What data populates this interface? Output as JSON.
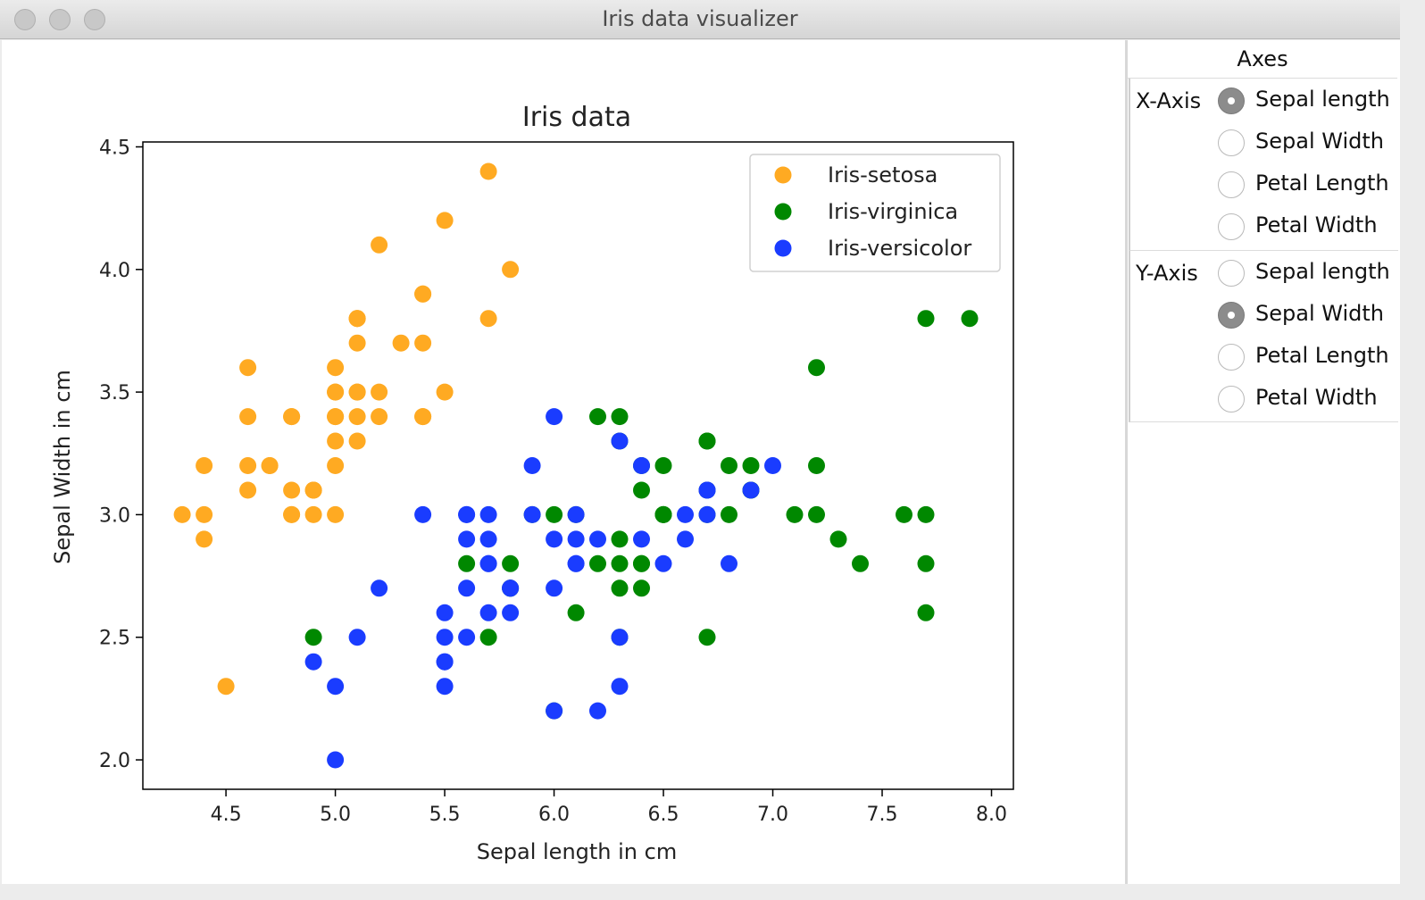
{
  "window": {
    "title": "Iris data visualizer"
  },
  "panel": {
    "title": "Axes",
    "x_axis": {
      "label": "X-Axis",
      "options": [
        "Sepal length",
        "Sepal Width",
        "Petal Length",
        "Petal Width"
      ],
      "selected": "Sepal length"
    },
    "y_axis": {
      "label": "Y-Axis",
      "options": [
        "Sepal length",
        "Sepal Width",
        "Petal Length",
        "Petal Width"
      ],
      "selected": "Sepal Width"
    }
  },
  "colors": {
    "setosa": "#ffaa22",
    "virginica": "#008800",
    "versicolor": "#1a3cff"
  },
  "chart_data": {
    "type": "scatter",
    "title": "Iris data",
    "xlabel": "Sepal length in cm",
    "ylabel": "Sepal Width in cm",
    "xlim": [
      4.12,
      8.1
    ],
    "ylim": [
      1.88,
      4.52
    ],
    "xticks": [
      "4.5",
      "5.0",
      "5.5",
      "6.0",
      "6.5",
      "7.0",
      "7.5",
      "8.0"
    ],
    "yticks": [
      "2.0",
      "2.5",
      "3.0",
      "3.5",
      "4.0",
      "4.5"
    ],
    "legend_position": "top-right",
    "series": [
      {
        "name": "Iris-setosa",
        "color": "#ffaa22",
        "points": [
          [
            5.1,
            3.5
          ],
          [
            4.9,
            3.0
          ],
          [
            4.7,
            3.2
          ],
          [
            4.6,
            3.1
          ],
          [
            5.0,
            3.6
          ],
          [
            5.4,
            3.9
          ],
          [
            4.6,
            3.4
          ],
          [
            5.0,
            3.4
          ],
          [
            4.4,
            2.9
          ],
          [
            4.9,
            3.1
          ],
          [
            5.4,
            3.7
          ],
          [
            4.8,
            3.4
          ],
          [
            4.8,
            3.0
          ],
          [
            4.3,
            3.0
          ],
          [
            5.8,
            4.0
          ],
          [
            5.7,
            4.4
          ],
          [
            5.4,
            3.9
          ],
          [
            5.1,
            3.5
          ],
          [
            5.7,
            3.8
          ],
          [
            5.1,
            3.8
          ],
          [
            5.4,
            3.4
          ],
          [
            5.1,
            3.7
          ],
          [
            4.6,
            3.6
          ],
          [
            5.1,
            3.3
          ],
          [
            4.8,
            3.4
          ],
          [
            5.0,
            3.0
          ],
          [
            5.0,
            3.4
          ],
          [
            5.2,
            3.5
          ],
          [
            5.2,
            3.4
          ],
          [
            4.7,
            3.2
          ],
          [
            4.8,
            3.1
          ],
          [
            5.4,
            3.4
          ],
          [
            5.2,
            4.1
          ],
          [
            5.5,
            4.2
          ],
          [
            4.9,
            3.1
          ],
          [
            5.0,
            3.2
          ],
          [
            5.5,
            3.5
          ],
          [
            4.9,
            3.1
          ],
          [
            4.4,
            3.0
          ],
          [
            5.1,
            3.4
          ],
          [
            5.0,
            3.5
          ],
          [
            4.5,
            2.3
          ],
          [
            4.4,
            3.2
          ],
          [
            5.0,
            3.5
          ],
          [
            5.1,
            3.8
          ],
          [
            4.8,
            3.0
          ],
          [
            5.1,
            3.8
          ],
          [
            4.6,
            3.2
          ],
          [
            5.3,
            3.7
          ],
          [
            5.0,
            3.3
          ]
        ]
      },
      {
        "name": "Iris-virginica",
        "color": "#008800",
        "points": [
          [
            6.3,
            3.3
          ],
          [
            5.8,
            2.7
          ],
          [
            7.1,
            3.0
          ],
          [
            6.3,
            2.9
          ],
          [
            6.5,
            3.0
          ],
          [
            7.6,
            3.0
          ],
          [
            4.9,
            2.5
          ],
          [
            7.3,
            2.9
          ],
          [
            6.7,
            2.5
          ],
          [
            7.2,
            3.6
          ],
          [
            6.5,
            3.2
          ],
          [
            6.4,
            2.7
          ],
          [
            6.8,
            3.0
          ],
          [
            5.7,
            2.5
          ],
          [
            5.8,
            2.8
          ],
          [
            6.4,
            3.2
          ],
          [
            6.5,
            3.0
          ],
          [
            7.7,
            3.8
          ],
          [
            7.7,
            2.6
          ],
          [
            6.0,
            2.2
          ],
          [
            6.9,
            3.2
          ],
          [
            5.6,
            2.8
          ],
          [
            7.7,
            2.8
          ],
          [
            6.3,
            2.7
          ],
          [
            6.7,
            3.3
          ],
          [
            7.2,
            3.2
          ],
          [
            6.2,
            2.8
          ],
          [
            6.1,
            3.0
          ],
          [
            6.4,
            2.8
          ],
          [
            7.2,
            3.0
          ],
          [
            7.4,
            2.8
          ],
          [
            7.9,
            3.8
          ],
          [
            6.4,
            2.8
          ],
          [
            6.3,
            2.8
          ],
          [
            6.1,
            2.6
          ],
          [
            7.7,
            3.0
          ],
          [
            6.3,
            3.4
          ],
          [
            6.4,
            3.1
          ],
          [
            6.0,
            3.0
          ],
          [
            6.9,
            3.1
          ],
          [
            6.7,
            3.1
          ],
          [
            6.9,
            3.1
          ],
          [
            5.8,
            2.7
          ],
          [
            6.8,
            3.2
          ],
          [
            6.7,
            3.3
          ],
          [
            6.7,
            3.0
          ],
          [
            6.3,
            2.5
          ],
          [
            6.5,
            3.0
          ],
          [
            6.2,
            3.4
          ],
          [
            5.9,
            3.0
          ]
        ]
      },
      {
        "name": "Iris-versicolor",
        "color": "#1a3cff",
        "points": [
          [
            7.0,
            3.2
          ],
          [
            6.4,
            3.2
          ],
          [
            6.9,
            3.1
          ],
          [
            5.5,
            2.3
          ],
          [
            6.5,
            2.8
          ],
          [
            5.7,
            2.8
          ],
          [
            6.3,
            3.3
          ],
          [
            4.9,
            2.4
          ],
          [
            6.6,
            2.9
          ],
          [
            5.2,
            2.7
          ],
          [
            5.0,
            2.0
          ],
          [
            5.9,
            3.0
          ],
          [
            6.0,
            2.2
          ],
          [
            6.1,
            2.9
          ],
          [
            5.6,
            2.9
          ],
          [
            6.7,
            3.1
          ],
          [
            5.6,
            3.0
          ],
          [
            5.8,
            2.7
          ],
          [
            6.2,
            2.2
          ],
          [
            5.6,
            2.5
          ],
          [
            5.9,
            3.2
          ],
          [
            6.1,
            2.8
          ],
          [
            6.3,
            2.5
          ],
          [
            6.1,
            2.8
          ],
          [
            6.4,
            2.9
          ],
          [
            6.6,
            3.0
          ],
          [
            6.8,
            2.8
          ],
          [
            6.7,
            3.0
          ],
          [
            6.0,
            2.9
          ],
          [
            5.7,
            2.6
          ],
          [
            5.5,
            2.4
          ],
          [
            5.5,
            2.4
          ],
          [
            5.8,
            2.7
          ],
          [
            6.0,
            2.7
          ],
          [
            5.4,
            3.0
          ],
          [
            6.0,
            3.4
          ],
          [
            6.7,
            3.1
          ],
          [
            6.3,
            2.3
          ],
          [
            5.6,
            3.0
          ],
          [
            5.5,
            2.5
          ],
          [
            5.5,
            2.6
          ],
          [
            6.1,
            3.0
          ],
          [
            5.8,
            2.6
          ],
          [
            5.0,
            2.3
          ],
          [
            5.6,
            2.7
          ],
          [
            5.7,
            3.0
          ],
          [
            5.7,
            2.9
          ],
          [
            6.2,
            2.9
          ],
          [
            5.1,
            2.5
          ],
          [
            5.7,
            2.8
          ]
        ]
      }
    ]
  }
}
